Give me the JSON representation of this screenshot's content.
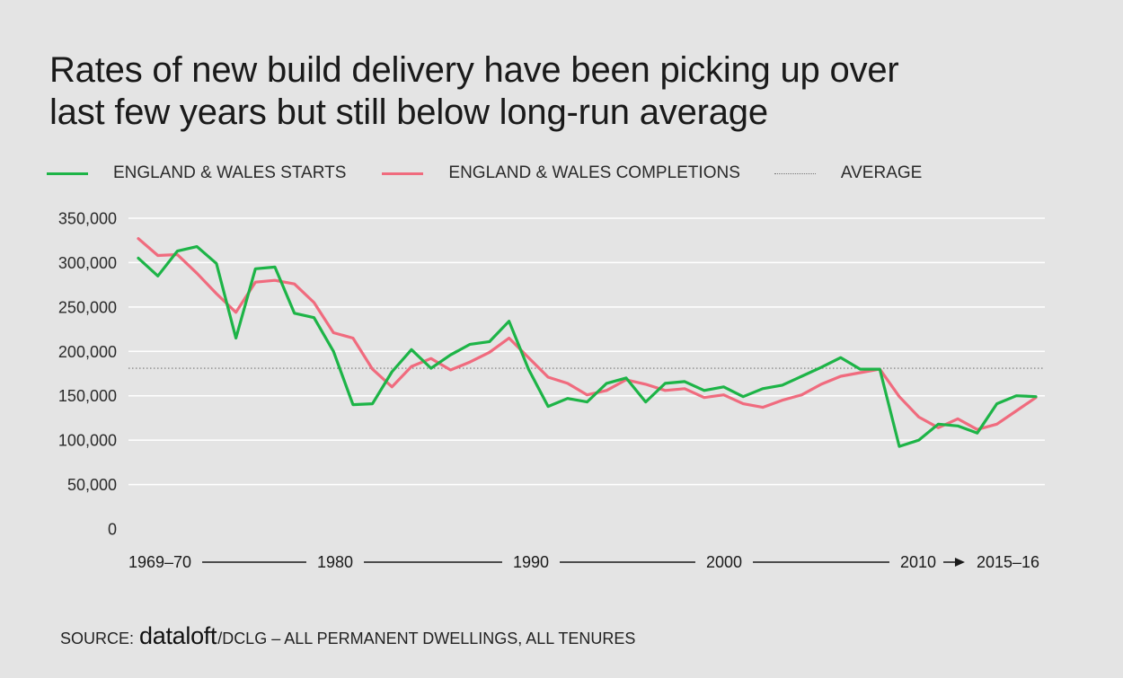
{
  "title": {
    "line1": "Rates of new build delivery have been picking up over",
    "line2": "last few years but still below long-run average"
  },
  "legend": {
    "starts": "ENGLAND & WALES STARTS",
    "completions": "ENGLAND & WALES COMPLETIONS",
    "average": "AVERAGE"
  },
  "colors": {
    "background": "#e4e4e4",
    "starts": "#1db447",
    "completions": "#f06b7e",
    "average": "#777777",
    "grid": "#ffffff"
  },
  "source": {
    "prefix": "SOURCE:",
    "brand": "dataloft",
    "rest": "/DCLG – ALL PERMANENT DWELLINGS, ALL TENURES"
  },
  "chart_data": {
    "type": "line",
    "title": "Rates of new build delivery have been picking up over last few years but still below long-run average",
    "xlabel": "",
    "ylabel": "",
    "ylim": [
      0,
      350000
    ],
    "y_ticks": [
      0,
      50000,
      100000,
      150000,
      200000,
      250000,
      300000,
      350000
    ],
    "y_tick_labels": [
      "0",
      "50,000",
      "100,000",
      "150,000",
      "200,000",
      "250,000",
      "300,000",
      "350,000"
    ],
    "x_tick_labels": [
      "1969–70",
      "1980",
      "1990",
      "2000",
      "2010",
      "2015–16"
    ],
    "x_tick_indices": [
      0,
      10,
      20,
      30,
      40,
      46
    ],
    "grid": true,
    "average": 181000,
    "series": [
      {
        "name": "ENGLAND & WALES STARTS",
        "values": [
          305000,
          285000,
          313000,
          318000,
          299000,
          215000,
          293000,
          295000,
          243000,
          238000,
          200000,
          140000,
          141000,
          177000,
          202000,
          181000,
          196000,
          208000,
          211000,
          234000,
          180000,
          138000,
          147000,
          143000,
          164000,
          170000,
          143000,
          164000,
          166000,
          156000,
          160000,
          149000,
          158000,
          162000,
          172000,
          182000,
          193000,
          180000,
          180000,
          93000,
          100000,
          118000,
          116000,
          108000,
          141000,
          150000,
          149000
        ]
      },
      {
        "name": "ENGLAND & WALES COMPLETIONS",
        "values": [
          327000,
          308000,
          309000,
          288000,
          265000,
          244000,
          278000,
          280000,
          276000,
          255000,
          221000,
          215000,
          180000,
          160000,
          183000,
          192000,
          179000,
          188000,
          199000,
          215000,
          193000,
          171000,
          164000,
          151000,
          156000,
          168000,
          163000,
          156000,
          158000,
          148000,
          151000,
          141000,
          137000,
          145000,
          151000,
          163000,
          172000,
          176000,
          180000,
          149000,
          126000,
          114000,
          124000,
          112000,
          118000,
          133000,
          148000
        ]
      }
    ]
  }
}
